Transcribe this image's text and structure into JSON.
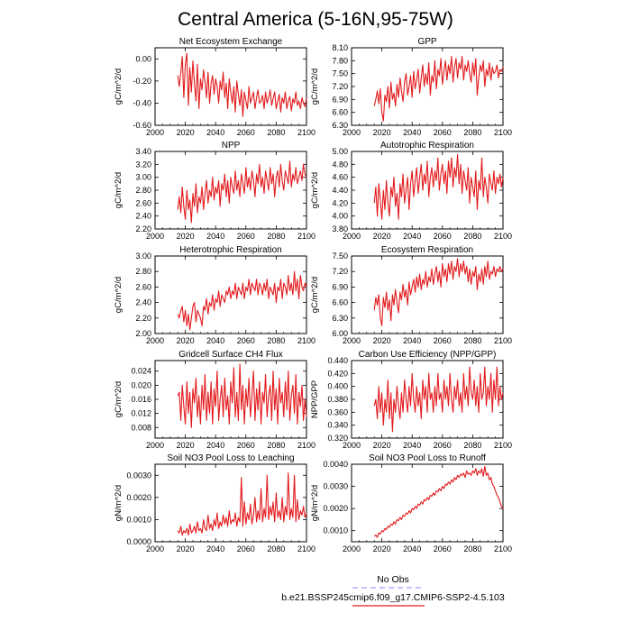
{
  "title": "Central America (5-16N,95-75W)",
  "series_color": "#e31a1c",
  "obs_color": "#a0a0ff",
  "legend": {
    "obs_label": "No Obs",
    "model_label": "b.e21.BSSP245cmip6.f09_g17.CMIP6-SSP2-4.5.103"
  },
  "chart_data": [
    {
      "type": "line",
      "title": "Net Ecosystem Exchange",
      "ylabel": "gC/m^2/d",
      "xlim": [
        2000,
        2100
      ],
      "xticks": [
        2000,
        2020,
        2040,
        2060,
        2080,
        2100
      ],
      "ylim": [
        -0.6,
        0.1
      ],
      "yticks": [
        "0.00",
        "-0.20",
        "-0.40",
        "-0.60"
      ],
      "x_start": 2015,
      "values": [
        -0.15,
        -0.25,
        -0.12,
        0.02,
        -0.35,
        -0.05,
        0.05,
        -0.42,
        -0.08,
        -0.3,
        -0.02,
        -0.22,
        -0.38,
        -0.05,
        -0.45,
        -0.18,
        -0.28,
        -0.1,
        -0.2,
        -0.35,
        -0.12,
        -0.4,
        -0.22,
        -0.15,
        -0.32,
        -0.18,
        -0.25,
        -0.4,
        -0.2,
        -0.28,
        -0.12,
        -0.35,
        -0.22,
        -0.45,
        -0.18,
        -0.3,
        -0.4,
        -0.25,
        -0.48,
        -0.2,
        -0.32,
        -0.42,
        -0.28,
        -0.52,
        -0.3,
        -0.38,
        -0.45,
        -0.25,
        -0.4,
        -0.35,
        -0.3,
        -0.45,
        -0.35,
        -0.28,
        -0.4,
        -0.38,
        -0.33,
        -0.45,
        -0.3,
        -0.4,
        -0.35,
        -0.28,
        -0.42,
        -0.36,
        -0.3,
        -0.45,
        -0.38,
        -0.32,
        -0.48,
        -0.35,
        -0.4,
        -0.3,
        -0.45,
        -0.38,
        -0.34,
        -0.47,
        -0.36,
        -0.4,
        -0.3,
        -0.42,
        -0.38,
        -0.45,
        -0.35,
        -0.4,
        -0.43,
        -0.36
      ]
    },
    {
      "type": "line",
      "title": "GPP",
      "ylabel": "gC/m^2/d",
      "xlim": [
        2000,
        2100
      ],
      "xticks": [
        2000,
        2020,
        2040,
        2060,
        2080,
        2100
      ],
      "ylim": [
        6.3,
        8.1
      ],
      "yticks": [
        "8.10",
        "7.80",
        "7.50",
        "7.20",
        "6.90",
        "6.60",
        "6.30"
      ],
      "x_start": 2015,
      "values": [
        6.75,
        6.9,
        7.1,
        6.8,
        7.15,
        6.6,
        6.4,
        7.0,
        6.85,
        7.2,
        6.7,
        7.3,
        6.9,
        7.05,
        6.75,
        7.25,
        6.95,
        7.4,
        7.1,
        6.85,
        7.3,
        7.5,
        7.0,
        7.2,
        7.45,
        6.95,
        7.55,
        7.15,
        7.35,
        7.6,
        7.05,
        7.4,
        7.7,
        7.2,
        7.5,
        7.25,
        7.75,
        7.0,
        7.45,
        7.3,
        7.8,
        7.15,
        7.6,
        7.45,
        7.85,
        7.25,
        7.55,
        7.8,
        7.35,
        7.7,
        7.5,
        7.9,
        7.3,
        7.65,
        7.85,
        7.4,
        7.75,
        7.6,
        7.9,
        7.35,
        7.7,
        7.55,
        7.8,
        7.5,
        7.3,
        7.75,
        7.45,
        7.85,
        7.0,
        7.4,
        7.7,
        7.55,
        7.8,
        7.2,
        7.6,
        7.45,
        7.75,
        7.35,
        7.65,
        7.5,
        7.55,
        7.7,
        7.4,
        7.6,
        7.55,
        7.65
      ]
    },
    {
      "type": "line",
      "title": "NPP",
      "ylabel": "gC/m^2/d",
      "xlim": [
        2000,
        2100
      ],
      "xticks": [
        2000,
        2020,
        2040,
        2060,
        2080,
        2100
      ],
      "ylim": [
        2.2,
        3.4
      ],
      "yticks": [
        "3.40",
        "3.20",
        "3.00",
        "2.80",
        "2.60",
        "2.40",
        "2.20"
      ],
      "x_start": 2015,
      "values": [
        2.5,
        2.7,
        2.45,
        2.85,
        2.55,
        2.35,
        2.8,
        2.5,
        2.65,
        2.3,
        2.75,
        2.55,
        2.9,
        2.45,
        2.7,
        2.6,
        2.85,
        2.5,
        2.75,
        2.95,
        2.6,
        2.8,
        2.7,
        3.0,
        2.65,
        2.85,
        2.75,
        2.95,
        2.55,
        2.9,
        2.8,
        3.05,
        2.7,
        2.95,
        2.6,
        3.0,
        2.85,
        2.75,
        3.1,
        2.8,
        2.95,
        2.7,
        3.05,
        2.9,
        2.75,
        3.15,
        2.85,
        3.0,
        2.8,
        3.1,
        2.95,
        2.7,
        3.05,
        2.9,
        3.2,
        2.85,
        3.0,
        2.75,
        3.1,
        2.95,
        2.8,
        3.15,
        2.9,
        3.05,
        2.7,
        3.0,
        3.1,
        2.85,
        3.2,
        2.95,
        2.8,
        3.1,
        3.0,
        2.9,
        3.25,
        2.85,
        3.05,
        2.95,
        3.15,
        2.9,
        3.0,
        3.1,
        2.95,
        3.2,
        3.05,
        3.0
      ]
    },
    {
      "type": "line",
      "title": "Autotrophic Respiration",
      "ylabel": "gC/m^2/d",
      "xlim": [
        2000,
        2100
      ],
      "xticks": [
        2000,
        2020,
        2040,
        2060,
        2080,
        2100
      ],
      "ylim": [
        3.8,
        5.0
      ],
      "yticks": [
        "5.00",
        "4.80",
        "4.60",
        "4.40",
        "4.20",
        "4.00",
        "3.80"
      ],
      "x_start": 2015,
      "values": [
        4.2,
        4.45,
        4.0,
        4.5,
        4.25,
        3.95,
        4.4,
        4.1,
        4.55,
        4.2,
        4.0,
        4.45,
        4.3,
        4.6,
        4.15,
        4.35,
        3.95,
        4.5,
        4.3,
        4.65,
        4.2,
        4.4,
        4.6,
        4.1,
        4.5,
        4.7,
        4.3,
        4.55,
        4.75,
        4.35,
        4.6,
        4.8,
        4.4,
        4.65,
        4.5,
        4.85,
        4.3,
        4.6,
        4.75,
        4.45,
        4.7,
        4.55,
        4.9,
        4.4,
        4.65,
        4.8,
        4.5,
        4.7,
        4.35,
        4.85,
        4.6,
        4.9,
        4.45,
        4.75,
        4.6,
        4.95,
        4.5,
        4.8,
        4.35,
        4.7,
        4.55,
        4.4,
        4.75,
        4.2,
        4.6,
        4.45,
        4.3,
        4.7,
        4.1,
        4.55,
        4.4,
        4.9,
        4.3,
        4.6,
        4.45,
        4.2,
        4.65,
        4.5,
        4.4,
        4.7,
        4.35,
        4.6,
        4.5,
        4.65,
        4.45,
        4.6
      ]
    },
    {
      "type": "line",
      "title": "Heterotrophic Respiration",
      "ylabel": "gC/m^2/d",
      "xlim": [
        2000,
        2100
      ],
      "xticks": [
        2000,
        2020,
        2040,
        2060,
        2080,
        2100
      ],
      "ylim": [
        2.0,
        3.0
      ],
      "yticks": [
        "3.00",
        "2.80",
        "2.60",
        "2.40",
        "2.20",
        "2.00"
      ],
      "x_start": 2015,
      "values": [
        2.25,
        2.2,
        2.3,
        2.35,
        2.15,
        2.3,
        2.1,
        2.25,
        2.05,
        2.2,
        2.35,
        2.4,
        2.15,
        2.3,
        2.25,
        2.2,
        2.1,
        2.35,
        2.3,
        2.45,
        2.25,
        2.4,
        2.35,
        2.5,
        2.3,
        2.45,
        2.4,
        2.55,
        2.35,
        2.5,
        2.45,
        2.4,
        2.55,
        2.5,
        2.6,
        2.45,
        2.55,
        2.5,
        2.65,
        2.45,
        2.6,
        2.55,
        2.5,
        2.65,
        2.45,
        2.6,
        2.55,
        2.7,
        2.5,
        2.65,
        2.6,
        2.55,
        2.7,
        2.5,
        2.65,
        2.6,
        2.5,
        2.65,
        2.55,
        2.7,
        2.45,
        2.6,
        2.55,
        2.5,
        2.65,
        2.4,
        2.6,
        2.55,
        2.7,
        2.45,
        2.65,
        2.6,
        2.5,
        2.75,
        2.55,
        2.65,
        2.5,
        2.8,
        2.55,
        2.7,
        2.45,
        2.75,
        2.6,
        2.55,
        2.65,
        2.6
      ]
    },
    {
      "type": "line",
      "title": "Ecosystem Respiration",
      "ylabel": "gC/m^2/d",
      "xlim": [
        2000,
        2100
      ],
      "xticks": [
        2000,
        2020,
        2040,
        2060,
        2080,
        2100
      ],
      "ylim": [
        6.0,
        7.5
      ],
      "yticks": [
        "7.50",
        "7.20",
        "6.90",
        "6.60",
        "6.30",
        "6.00"
      ],
      "x_start": 2015,
      "values": [
        6.45,
        6.7,
        6.55,
        6.75,
        6.3,
        6.15,
        6.7,
        6.5,
        6.8,
        6.45,
        6.65,
        6.25,
        6.75,
        6.55,
        6.85,
        6.6,
        6.4,
        6.8,
        6.65,
        6.95,
        6.7,
        6.85,
        6.55,
        7.0,
        6.75,
        6.9,
        7.05,
        6.8,
        7.1,
        6.9,
        7.15,
        6.85,
        7.05,
        6.95,
        7.2,
        6.9,
        7.1,
        7.0,
        7.25,
        6.95,
        7.15,
        7.3,
        7.0,
        7.2,
        6.9,
        7.35,
        7.1,
        7.25,
        7.0,
        7.35,
        7.15,
        7.4,
        7.05,
        7.3,
        7.2,
        7.45,
        7.1,
        7.35,
        7.2,
        7.4,
        7.15,
        7.3,
        7.0,
        7.25,
        6.95,
        7.2,
        7.1,
        7.3,
        6.85,
        7.15,
        7.0,
        7.25,
        6.95,
        7.3,
        7.1,
        7.4,
        7.05,
        7.2,
        7.15,
        7.3,
        7.1,
        7.25,
        7.2,
        7.3,
        7.2,
        7.25
      ]
    },
    {
      "type": "line",
      "title": "Gridcell Surface CH4 Flux",
      "ylabel": "gC/m^2/d",
      "xlim": [
        2000,
        2100
      ],
      "xticks": [
        2000,
        2020,
        2040,
        2060,
        2080,
        2100
      ],
      "ylim": [
        0.005,
        0.027
      ],
      "yticks": [
        "0.024",
        "0.020",
        "0.016",
        "0.012",
        "0.008"
      ],
      "x_start": 2015,
      "values": [
        0.017,
        0.018,
        0.01,
        0.02,
        0.014,
        0.009,
        0.021,
        0.012,
        0.018,
        0.008,
        0.019,
        0.015,
        0.022,
        0.011,
        0.017,
        0.009,
        0.02,
        0.013,
        0.023,
        0.01,
        0.018,
        0.012,
        0.021,
        0.009,
        0.019,
        0.014,
        0.024,
        0.01,
        0.016,
        0.02,
        0.011,
        0.022,
        0.013,
        0.017,
        0.009,
        0.021,
        0.015,
        0.025,
        0.011,
        0.018,
        0.01,
        0.026,
        0.013,
        0.02,
        0.009,
        0.019,
        0.014,
        0.022,
        0.011,
        0.017,
        0.024,
        0.01,
        0.019,
        0.013,
        0.021,
        0.009,
        0.018,
        0.015,
        0.023,
        0.011,
        0.017,
        0.02,
        0.01,
        0.024,
        0.013,
        0.019,
        0.009,
        0.022,
        0.015,
        0.018,
        0.011,
        0.021,
        0.013,
        0.024,
        0.01,
        0.017,
        0.02,
        0.012,
        0.023,
        0.009,
        0.018,
        0.014,
        0.02,
        0.01,
        0.016,
        0.011
      ]
    },
    {
      "type": "line",
      "title": "Carbon Use Efficiency (NPP/GPP)",
      "ylabel": "NPP/GPP",
      "xlim": [
        2000,
        2100
      ],
      "xticks": [
        2000,
        2020,
        2040,
        2060,
        2080,
        2100
      ],
      "ylim": [
        0.32,
        0.44
      ],
      "yticks": [
        "0.440",
        "0.420",
        "0.400",
        "0.380",
        "0.360",
        "0.340",
        "0.320"
      ],
      "x_start": 2015,
      "values": [
        0.37,
        0.38,
        0.35,
        0.4,
        0.36,
        0.39,
        0.34,
        0.38,
        0.36,
        0.41,
        0.35,
        0.39,
        0.33,
        0.38,
        0.36,
        0.4,
        0.37,
        0.35,
        0.39,
        0.36,
        0.41,
        0.38,
        0.36,
        0.4,
        0.37,
        0.42,
        0.38,
        0.36,
        0.4,
        0.37,
        0.39,
        0.35,
        0.41,
        0.38,
        0.4,
        0.36,
        0.42,
        0.38,
        0.39,
        0.36,
        0.4,
        0.37,
        0.42,
        0.38,
        0.39,
        0.36,
        0.41,
        0.38,
        0.4,
        0.37,
        0.42,
        0.38,
        0.36,
        0.4,
        0.38,
        0.41,
        0.37,
        0.39,
        0.36,
        0.42,
        0.38,
        0.4,
        0.37,
        0.43,
        0.39,
        0.38,
        0.41,
        0.37,
        0.4,
        0.36,
        0.42,
        0.38,
        0.39,
        0.43,
        0.37,
        0.4,
        0.38,
        0.42,
        0.36,
        0.41,
        0.38,
        0.43,
        0.37,
        0.4,
        0.38,
        0.39
      ]
    },
    {
      "type": "line",
      "title": "Soil NO3 Pool Loss to Leaching",
      "ylabel": "gN/m^2/d",
      "xlim": [
        2000,
        2100
      ],
      "xticks": [
        2000,
        2020,
        2040,
        2060,
        2080,
        2100
      ],
      "ylim": [
        0.0,
        0.0035
      ],
      "yticks": [
        "0.0030",
        "0.0020",
        "0.0010",
        "0.0000"
      ],
      "x_start": 2015,
      "values": [
        0.0005,
        0.0004,
        0.0007,
        0.0003,
        0.0005,
        0.0004,
        0.0006,
        0.0003,
        0.0008,
        0.0004,
        0.0005,
        0.0007,
        0.0004,
        0.0009,
        0.0005,
        0.0006,
        0.0004,
        0.001,
        0.0006,
        0.0005,
        0.0012,
        0.0006,
        0.0008,
        0.0005,
        0.001,
        0.0007,
        0.0013,
        0.0006,
        0.0009,
        0.0007,
        0.0012,
        0.0008,
        0.0011,
        0.0007,
        0.0014,
        0.0008,
        0.001,
        0.0009,
        0.0013,
        0.0007,
        0.0011,
        0.0009,
        0.0029,
        0.0007,
        0.0018,
        0.0008,
        0.0013,
        0.001,
        0.0017,
        0.0008,
        0.0012,
        0.002,
        0.0009,
        0.0014,
        0.001,
        0.0024,
        0.0009,
        0.0015,
        0.0011,
        0.003,
        0.001,
        0.0016,
        0.0012,
        0.0018,
        0.0009,
        0.0022,
        0.0011,
        0.0014,
        0.001,
        0.002,
        0.0009,
        0.0016,
        0.0012,
        0.0031,
        0.001,
        0.0015,
        0.0011,
        0.003,
        0.0009,
        0.0019,
        0.001,
        0.0014,
        0.0012,
        0.0016,
        0.0011,
        0.0013
      ]
    },
    {
      "type": "line",
      "title": "Soil NO3 Pool Loss to Runoff",
      "ylabel": "gN/m^2/d",
      "xlim": [
        2000,
        2100
      ],
      "xticks": [
        2000,
        2020,
        2040,
        2060,
        2080,
        2100
      ],
      "ylim": [
        0.0005,
        0.004
      ],
      "yticks": [
        "0.0040",
        "0.0030",
        "0.0020",
        "0.0010"
      ],
      "x_start": 2015,
      "values": [
        0.00075,
        0.0008,
        0.0007,
        0.0009,
        0.00085,
        0.001,
        0.00095,
        0.0011,
        0.00105,
        0.0012,
        0.00115,
        0.0013,
        0.00125,
        0.0014,
        0.0013,
        0.0015,
        0.00145,
        0.0016,
        0.0015,
        0.0017,
        0.00165,
        0.0018,
        0.00175,
        0.0019,
        0.0018,
        0.002,
        0.00195,
        0.0021,
        0.002,
        0.0022,
        0.00215,
        0.0023,
        0.0022,
        0.0024,
        0.00235,
        0.0025,
        0.0024,
        0.0026,
        0.00255,
        0.0027,
        0.0026,
        0.0028,
        0.00275,
        0.0029,
        0.0028,
        0.003,
        0.0029,
        0.0031,
        0.00305,
        0.0032,
        0.0031,
        0.0033,
        0.0032,
        0.0034,
        0.0033,
        0.0035,
        0.0034,
        0.00355,
        0.0035,
        0.0036,
        0.0034,
        0.0037,
        0.00355,
        0.0036,
        0.0035,
        0.0037,
        0.0036,
        0.0038,
        0.0035,
        0.0037,
        0.0036,
        0.0038,
        0.00345,
        0.0039,
        0.0035,
        0.0036,
        0.0033,
        0.0034,
        0.0031,
        0.003,
        0.0028,
        0.0026,
        0.0025,
        0.0023,
        0.0021,
        0.002
      ]
    }
  ]
}
